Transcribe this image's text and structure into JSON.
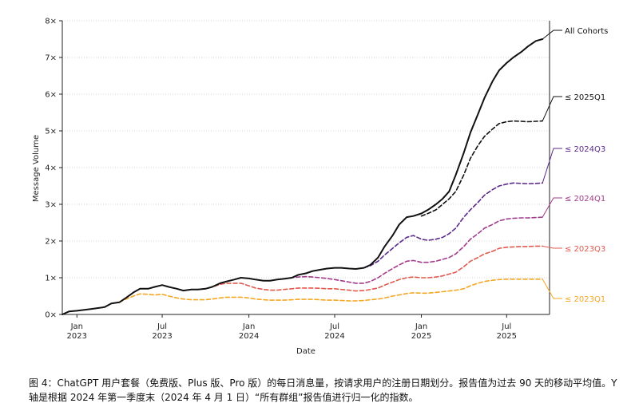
{
  "caption": "图 4：ChatGPT 用户套餐（免费版、Plus 版、Pro 版）的每日消息量，按请求用户的注册日期划分。报告值为过去 90 天的移动平均值。Y 轴是根据 2024 年第一季度末（2024 年 4 月 1 日）“所有群组”报告值进行归一化的指数。",
  "chart_data": {
    "type": "line",
    "xlabel": "Date",
    "ylabel": "Message Volume",
    "ylim": [
      0,
      8
    ],
    "yticks": [
      0,
      1,
      2,
      3,
      4,
      5,
      6,
      7,
      8
    ],
    "ytick_labels": [
      "0×",
      "1×",
      "2×",
      "3×",
      "4×",
      "5×",
      "6×",
      "7×",
      "8×"
    ],
    "xlim": [
      "2022-12-01",
      "2025-09-30"
    ],
    "xticks": [
      {
        "date": "2023-01-01",
        "label": [
          "Jan",
          "2023"
        ]
      },
      {
        "date": "2023-07-01",
        "label": [
          "Jul",
          "2023"
        ]
      },
      {
        "date": "2024-01-01",
        "label": [
          "Jan",
          "2024"
        ]
      },
      {
        "date": "2024-07-01",
        "label": [
          "Jul",
          "2024"
        ]
      },
      {
        "date": "2025-01-01",
        "label": [
          "Jan",
          "2025"
        ]
      },
      {
        "date": "2025-07-01",
        "label": [
          "Jul",
          "2025"
        ]
      }
    ],
    "grid": "horizontal dotted",
    "legend": "direct labels at right end of lines",
    "series": [
      {
        "name": "All Cohorts",
        "color": "#111111",
        "dash": "solid",
        "x": [
          "2022-12-01",
          "2022-12-15",
          "2023-01-01",
          "2023-02-01",
          "2023-03-01",
          "2023-03-15",
          "2023-04-01",
          "2023-04-15",
          "2023-05-01",
          "2023-05-15",
          "2023-06-01",
          "2023-06-15",
          "2023-07-01",
          "2023-07-15",
          "2023-08-01",
          "2023-08-15",
          "2023-09-01",
          "2023-09-15",
          "2023-10-01",
          "2023-10-15",
          "2023-11-01",
          "2023-11-15",
          "2023-12-01",
          "2023-12-15",
          "2024-01-01",
          "2024-01-15",
          "2024-02-01",
          "2024-02-15",
          "2024-03-01",
          "2024-03-15",
          "2024-04-01",
          "2024-04-15",
          "2024-05-01",
          "2024-05-15",
          "2024-06-01",
          "2024-06-15",
          "2024-07-01",
          "2024-07-15",
          "2024-08-01",
          "2024-08-15",
          "2024-09-01",
          "2024-09-15",
          "2024-10-01",
          "2024-10-15",
          "2024-11-01",
          "2024-11-15",
          "2024-12-01",
          "2024-12-15",
          "2025-01-01",
          "2025-01-15",
          "2025-02-01",
          "2025-02-15",
          "2025-03-01",
          "2025-03-15",
          "2025-04-01",
          "2025-04-15",
          "2025-05-01",
          "2025-05-15",
          "2025-06-01",
          "2025-06-15",
          "2025-07-01",
          "2025-07-15",
          "2025-08-01",
          "2025-08-15",
          "2025-09-01",
          "2025-09-15"
        ],
        "y": [
          0.0,
          0.08,
          0.1,
          0.15,
          0.2,
          0.3,
          0.33,
          0.45,
          0.6,
          0.7,
          0.7,
          0.75,
          0.8,
          0.75,
          0.7,
          0.65,
          0.68,
          0.68,
          0.7,
          0.75,
          0.85,
          0.9,
          0.95,
          1.0,
          0.98,
          0.95,
          0.92,
          0.92,
          0.95,
          0.97,
          1.0,
          1.08,
          1.12,
          1.18,
          1.22,
          1.25,
          1.27,
          1.27,
          1.25,
          1.24,
          1.27,
          1.35,
          1.55,
          1.85,
          2.15,
          2.45,
          2.65,
          2.68,
          2.75,
          2.85,
          3.0,
          3.15,
          3.35,
          3.8,
          4.4,
          4.95,
          5.45,
          5.9,
          6.35,
          6.65,
          6.85,
          7.0,
          7.15,
          7.3,
          7.45,
          7.5
        ]
      },
      {
        "name": "≤ 2025Q1",
        "color": "#111111",
        "dash": "dashed",
        "x": [
          "2025-01-01",
          "2025-01-15",
          "2025-02-01",
          "2025-02-15",
          "2025-03-01",
          "2025-03-15",
          "2025-04-01",
          "2025-04-15",
          "2025-05-01",
          "2025-05-15",
          "2025-06-01",
          "2025-06-15",
          "2025-07-01",
          "2025-07-15",
          "2025-08-01",
          "2025-08-15",
          "2025-09-01",
          "2025-09-15"
        ],
        "y": [
          2.68,
          2.75,
          2.85,
          3.0,
          3.15,
          3.35,
          3.8,
          4.25,
          4.6,
          4.85,
          5.05,
          5.2,
          5.25,
          5.27,
          5.26,
          5.25,
          5.26,
          5.27
        ]
      },
      {
        "name": "≤ 2024Q3",
        "color": "#5b2a8a",
        "dash": "dashed",
        "x": [
          "2024-09-01",
          "2024-09-15",
          "2024-10-01",
          "2024-10-15",
          "2024-11-01",
          "2024-11-15",
          "2024-12-01",
          "2024-12-15",
          "2025-01-01",
          "2025-01-15",
          "2025-02-01",
          "2025-02-15",
          "2025-03-01",
          "2025-03-15",
          "2025-04-01",
          "2025-04-15",
          "2025-05-01",
          "2025-05-15",
          "2025-06-01",
          "2025-06-15",
          "2025-07-01",
          "2025-07-15",
          "2025-08-01",
          "2025-08-15",
          "2025-09-01",
          "2025-09-15"
        ],
        "y": [
          1.27,
          1.33,
          1.45,
          1.62,
          1.8,
          1.95,
          2.1,
          2.15,
          2.05,
          2.02,
          2.05,
          2.1,
          2.2,
          2.35,
          2.65,
          2.85,
          3.05,
          3.25,
          3.4,
          3.5,
          3.55,
          3.58,
          3.57,
          3.56,
          3.57,
          3.58
        ]
      },
      {
        "name": "≤ 2024Q1",
        "color": "#a23b8b",
        "dash": "dashed",
        "x": [
          "2024-03-01",
          "2024-03-15",
          "2024-04-01",
          "2024-04-15",
          "2024-05-01",
          "2024-05-15",
          "2024-06-01",
          "2024-06-15",
          "2024-07-01",
          "2024-07-15",
          "2024-08-01",
          "2024-08-15",
          "2024-09-01",
          "2024-09-15",
          "2024-10-01",
          "2024-10-15",
          "2024-11-01",
          "2024-11-15",
          "2024-12-01",
          "2024-12-15",
          "2025-01-01",
          "2025-01-15",
          "2025-02-01",
          "2025-02-15",
          "2025-03-01",
          "2025-03-15",
          "2025-04-01",
          "2025-04-15",
          "2025-05-01",
          "2025-05-15",
          "2025-06-01",
          "2025-06-15",
          "2025-07-01",
          "2025-07-15",
          "2025-08-01",
          "2025-08-15",
          "2025-09-01",
          "2025-09-15"
        ],
        "y": [
          0.95,
          0.97,
          1.0,
          1.02,
          1.03,
          1.02,
          1.0,
          0.98,
          0.95,
          0.92,
          0.88,
          0.85,
          0.85,
          0.9,
          1.0,
          1.12,
          1.25,
          1.35,
          1.45,
          1.47,
          1.42,
          1.42,
          1.45,
          1.5,
          1.55,
          1.65,
          1.85,
          2.05,
          2.2,
          2.35,
          2.45,
          2.55,
          2.6,
          2.62,
          2.63,
          2.63,
          2.64,
          2.65
        ]
      },
      {
        "name": "≤ 2023Q3",
        "color": "#e05a4f",
        "dash": "dashed",
        "x": [
          "2023-08-01",
          "2023-08-15",
          "2023-09-01",
          "2023-09-15",
          "2023-10-01",
          "2023-10-15",
          "2023-11-01",
          "2023-11-15",
          "2023-12-01",
          "2023-12-15",
          "2024-01-01",
          "2024-01-15",
          "2024-02-01",
          "2024-02-15",
          "2024-03-01",
          "2024-03-15",
          "2024-04-01",
          "2024-04-15",
          "2024-05-01",
          "2024-05-15",
          "2024-06-01",
          "2024-06-15",
          "2024-07-01",
          "2024-07-15",
          "2024-08-01",
          "2024-08-15",
          "2024-09-01",
          "2024-09-15",
          "2024-10-01",
          "2024-10-15",
          "2024-11-01",
          "2024-11-15",
          "2024-12-01",
          "2024-12-15",
          "2025-01-01",
          "2025-01-15",
          "2025-02-01",
          "2025-02-15",
          "2025-03-01",
          "2025-03-15",
          "2025-04-01",
          "2025-04-15",
          "2025-05-01",
          "2025-05-15",
          "2025-06-01",
          "2025-06-15",
          "2025-07-01",
          "2025-07-15",
          "2025-08-01",
          "2025-08-15",
          "2025-09-01",
          "2025-09-15"
        ],
        "y": [
          0.7,
          0.65,
          0.68,
          0.68,
          0.7,
          0.75,
          0.82,
          0.85,
          0.85,
          0.85,
          0.78,
          0.72,
          0.68,
          0.66,
          0.66,
          0.68,
          0.7,
          0.72,
          0.72,
          0.72,
          0.71,
          0.7,
          0.7,
          0.68,
          0.66,
          0.64,
          0.65,
          0.68,
          0.72,
          0.8,
          0.88,
          0.95,
          1.0,
          1.02,
          1.0,
          1.0,
          1.02,
          1.05,
          1.1,
          1.15,
          1.3,
          1.45,
          1.55,
          1.65,
          1.72,
          1.8,
          1.83,
          1.84,
          1.85,
          1.85,
          1.86,
          1.86
        ]
      },
      {
        "name": "≤ 2023Q1",
        "color": "#f5a623",
        "dash": "dashed",
        "x": [
          "2023-04-01",
          "2023-04-15",
          "2023-05-01",
          "2023-05-15",
          "2023-06-01",
          "2023-06-15",
          "2023-07-01",
          "2023-07-15",
          "2023-08-01",
          "2023-08-15",
          "2023-09-01",
          "2023-09-15",
          "2023-10-01",
          "2023-10-15",
          "2023-11-01",
          "2023-11-15",
          "2023-12-01",
          "2023-12-15",
          "2024-01-01",
          "2024-01-15",
          "2024-02-01",
          "2024-02-15",
          "2024-03-01",
          "2024-03-15",
          "2024-04-01",
          "2024-04-15",
          "2024-05-01",
          "2024-05-15",
          "2024-06-01",
          "2024-06-15",
          "2024-07-01",
          "2024-07-15",
          "2024-08-01",
          "2024-08-15",
          "2024-09-01",
          "2024-09-15",
          "2024-10-01",
          "2024-10-15",
          "2024-11-01",
          "2024-11-15",
          "2024-12-01",
          "2024-12-15",
          "2025-01-01",
          "2025-01-15",
          "2025-02-01",
          "2025-02-15",
          "2025-03-01",
          "2025-03-15",
          "2025-04-01",
          "2025-04-15",
          "2025-05-01",
          "2025-05-15",
          "2025-06-01",
          "2025-06-15",
          "2025-07-01",
          "2025-07-15",
          "2025-08-01",
          "2025-08-15",
          "2025-09-01",
          "2025-09-15"
        ],
        "y": [
          0.33,
          0.42,
          0.5,
          0.56,
          0.55,
          0.53,
          0.55,
          0.5,
          0.45,
          0.42,
          0.4,
          0.4,
          0.4,
          0.42,
          0.45,
          0.47,
          0.47,
          0.47,
          0.45,
          0.42,
          0.4,
          0.39,
          0.39,
          0.39,
          0.4,
          0.41,
          0.41,
          0.41,
          0.4,
          0.39,
          0.39,
          0.38,
          0.37,
          0.37,
          0.38,
          0.4,
          0.42,
          0.45,
          0.5,
          0.53,
          0.57,
          0.59,
          0.58,
          0.58,
          0.6,
          0.62,
          0.64,
          0.66,
          0.7,
          0.78,
          0.85,
          0.9,
          0.93,
          0.95,
          0.96,
          0.96,
          0.96,
          0.96,
          0.96,
          0.96
        ]
      }
    ]
  }
}
